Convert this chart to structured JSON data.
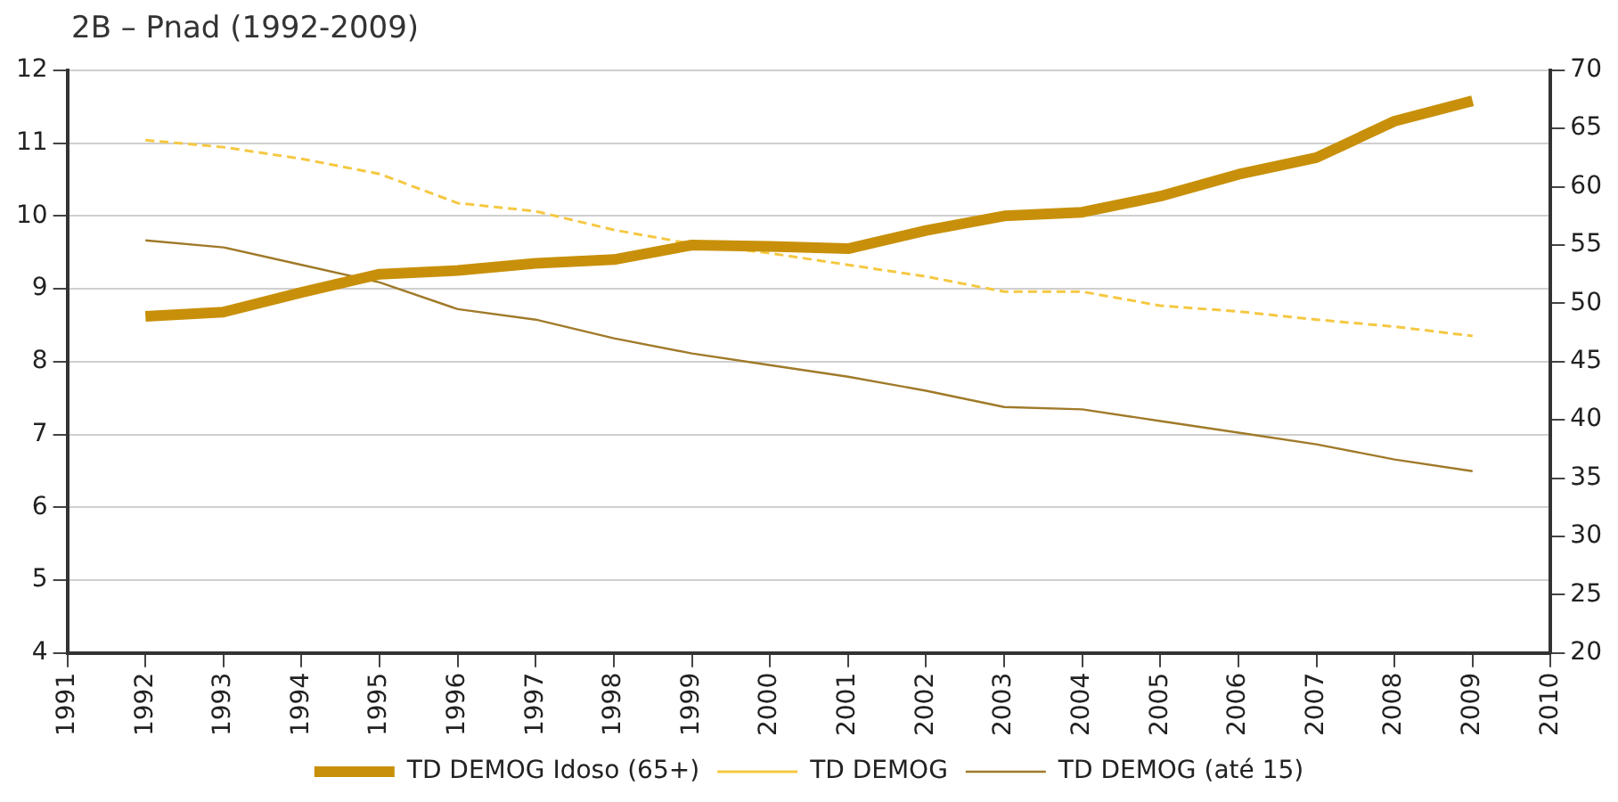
{
  "chart_data": {
    "type": "line",
    "title": "2B – Pnad (1992-2009)",
    "x": [
      1992,
      1993,
      1994,
      1995,
      1996,
      1997,
      1998,
      1999,
      2000,
      2001,
      2002,
      2003,
      2004,
      2005,
      2006,
      2007,
      2008,
      2009
    ],
    "series": [
      {
        "name": "TD DEMOG Idoso (65+)",
        "color": "#c8900a",
        "line_style": "solid",
        "values": [
          8.62,
          8.68,
          8.95,
          9.2,
          9.25,
          9.35,
          9.4,
          9.6,
          9.58,
          9.55,
          9.8,
          10.0,
          10.05,
          10.27,
          10.57,
          10.8,
          11.3,
          11.58
        ]
      },
      {
        "name": "TD DEMOG",
        "color": "#f5c842",
        "line_style": "dashed",
        "axis": "y2",
        "values": [
          64.0,
          63.4,
          62.4,
          61.1,
          58.6,
          57.9,
          56.3,
          55.1,
          54.3,
          53.3,
          52.3,
          51.0,
          51.0,
          49.8,
          49.3,
          48.6,
          48.0,
          47.2
        ]
      },
      {
        "name": "TD DEMOG (até 15)",
        "color": "#a07a2a",
        "line_style": "solid",
        "axis": "y2",
        "values": [
          55.4,
          54.8,
          53.3,
          51.8,
          49.5,
          48.6,
          47.0,
          45.7,
          44.7,
          43.7,
          42.5,
          41.1,
          40.9,
          39.9,
          38.9,
          37.9,
          36.6,
          35.6
        ]
      }
    ],
    "xlim": [
      1991,
      2010
    ],
    "xticks": [
      1991,
      1992,
      1993,
      1994,
      1995,
      1996,
      1997,
      1998,
      1999,
      2000,
      2001,
      2002,
      2003,
      2004,
      2005,
      2006,
      2007,
      2008,
      2009,
      2010
    ],
    "ylim": [
      4,
      12
    ],
    "yticks": [
      4,
      5,
      6,
      7,
      8,
      9,
      10,
      11,
      12
    ],
    "y2lim": [
      20,
      70
    ],
    "y2ticks": [
      20,
      25,
      30,
      35,
      40,
      45,
      50,
      55,
      60,
      65,
      70
    ],
    "grid": "y",
    "legend": "bottom",
    "marker": "none"
  }
}
